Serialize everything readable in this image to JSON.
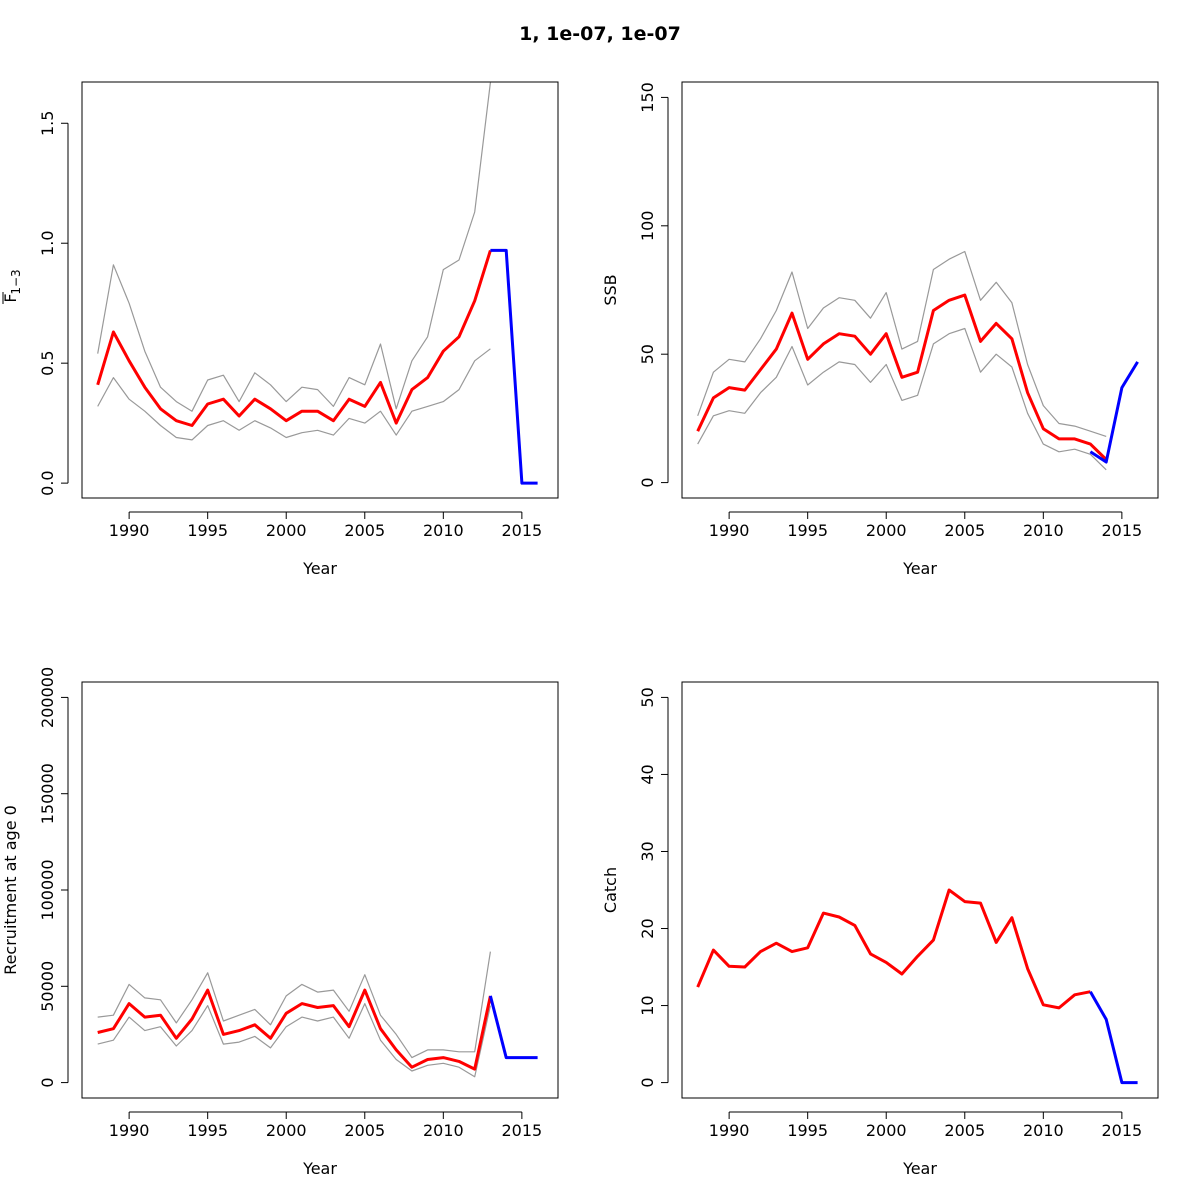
{
  "figure": {
    "title": "1, 1e-07, 1e-07"
  },
  "colors": {
    "estimate": "#ff0000",
    "forecast": "#0000ff",
    "ci": "#999999"
  },
  "chart_data": [
    {
      "type": "line",
      "panel": "fishing-mortality",
      "xlabel": "Year",
      "ylabel_main": "F",
      "ylabel_sub": "1−3",
      "xlim": [
        1987,
        2017.3
      ],
      "ylim": [
        -0.062,
        1.672
      ],
      "xticks": [
        "1990",
        "1995",
        "2000",
        "2005",
        "2010",
        "2015"
      ],
      "yticks": [
        "0.0",
        "0.5",
        "1.0",
        "1.5"
      ],
      "series": [
        {
          "role": "estimate",
          "x": [
            1988,
            1989,
            1990,
            1991,
            1992,
            1993,
            1994,
            1995,
            1996,
            1997,
            1998,
            1999,
            2000,
            2001,
            2002,
            2003,
            2004,
            2005,
            2006,
            2007,
            2008,
            2009,
            2010,
            2011,
            2012,
            2013
          ],
          "y": [
            0.41,
            0.63,
            0.51,
            0.4,
            0.31,
            0.26,
            0.24,
            0.33,
            0.35,
            0.28,
            0.35,
            0.31,
            0.26,
            0.3,
            0.3,
            0.26,
            0.35,
            0.32,
            0.42,
            0.25,
            0.39,
            0.44,
            0.55,
            0.61,
            0.76,
            0.97
          ]
        },
        {
          "role": "forecast",
          "x": [
            2013,
            2014,
            2015,
            2016
          ],
          "y": [
            0.97,
            0.97,
            0.0,
            0.0
          ]
        },
        {
          "role": "ci-upper",
          "x": [
            1988,
            1989,
            1990,
            1991,
            1992,
            1993,
            1994,
            1995,
            1996,
            1997,
            1998,
            1999,
            2000,
            2001,
            2002,
            2003,
            2004,
            2005,
            2006,
            2007,
            2008,
            2009,
            2010,
            2011,
            2012,
            2013
          ],
          "y": [
            0.54,
            0.91,
            0.75,
            0.55,
            0.4,
            0.34,
            0.3,
            0.43,
            0.45,
            0.34,
            0.46,
            0.41,
            0.34,
            0.4,
            0.39,
            0.32,
            0.44,
            0.41,
            0.58,
            0.31,
            0.51,
            0.61,
            0.89,
            0.93,
            1.13,
            1.67
          ]
        },
        {
          "role": "ci-lower",
          "x": [
            1988,
            1989,
            1990,
            1991,
            1992,
            1993,
            1994,
            1995,
            1996,
            1997,
            1998,
            1999,
            2000,
            2001,
            2002,
            2003,
            2004,
            2005,
            2006,
            2007,
            2008,
            2009,
            2010,
            2011,
            2012,
            2013
          ],
          "y": [
            0.32,
            0.44,
            0.35,
            0.3,
            0.24,
            0.19,
            0.18,
            0.24,
            0.26,
            0.22,
            0.26,
            0.23,
            0.19,
            0.21,
            0.22,
            0.2,
            0.27,
            0.25,
            0.3,
            0.2,
            0.3,
            0.32,
            0.34,
            0.39,
            0.51,
            0.56
          ]
        }
      ]
    },
    {
      "type": "line",
      "panel": "ssb",
      "xlabel": "Year",
      "ylabel": "SSB",
      "xlim": [
        1987,
        2017.3
      ],
      "ylim": [
        -6,
        156
      ],
      "xticks": [
        "1990",
        "1995",
        "2000",
        "2005",
        "2010",
        "2015"
      ],
      "yticks": [
        "0",
        "50",
        "100",
        "150"
      ],
      "series": [
        {
          "role": "estimate",
          "x": [
            1988,
            1989,
            1990,
            1991,
            1992,
            1993,
            1994,
            1995,
            1996,
            1997,
            1998,
            1999,
            2000,
            2001,
            2002,
            2003,
            2004,
            2005,
            2006,
            2007,
            2008,
            2009,
            2010,
            2011,
            2012,
            2013,
            2014
          ],
          "y": [
            20,
            33,
            37,
            36,
            44,
            52,
            66,
            48,
            54,
            58,
            57,
            50,
            58,
            41,
            43,
            67,
            71,
            73,
            55,
            62,
            56,
            35,
            21,
            17,
            17,
            15,
            9
          ]
        },
        {
          "role": "forecast",
          "x": [
            2013,
            2014,
            2015,
            2016
          ],
          "y": [
            12,
            8,
            37,
            47
          ]
        },
        {
          "role": "ci-upper",
          "x": [
            1988,
            1989,
            1990,
            1991,
            1992,
            1993,
            1994,
            1995,
            1996,
            1997,
            1998,
            1999,
            2000,
            2001,
            2002,
            2003,
            2004,
            2005,
            2006,
            2007,
            2008,
            2009,
            2010,
            2011,
            2012,
            2013,
            2014
          ],
          "y": [
            26,
            43,
            48,
            47,
            56,
            67,
            82,
            60,
            68,
            72,
            71,
            64,
            74,
            52,
            55,
            83,
            87,
            90,
            71,
            78,
            70,
            46,
            30,
            23,
            22,
            20,
            18
          ]
        },
        {
          "role": "ci-lower",
          "x": [
            1988,
            1989,
            1990,
            1991,
            1992,
            1993,
            1994,
            1995,
            1996,
            1997,
            1998,
            1999,
            2000,
            2001,
            2002,
            2003,
            2004,
            2005,
            2006,
            2007,
            2008,
            2009,
            2010,
            2011,
            2012,
            2013,
            2014
          ],
          "y": [
            15,
            26,
            28,
            27,
            35,
            41,
            53,
            38,
            43,
            47,
            46,
            39,
            46,
            32,
            34,
            54,
            58,
            60,
            43,
            50,
            45,
            27,
            15,
            12,
            13,
            11,
            5
          ]
        }
      ]
    },
    {
      "type": "line",
      "panel": "recruitment",
      "xlabel": "Year",
      "ylabel": "Recruitment at age 0",
      "xlim": [
        1987,
        2017.3
      ],
      "ylim": [
        -8000,
        208000
      ],
      "xticks": [
        "1990",
        "1995",
        "2000",
        "2005",
        "2010",
        "2015"
      ],
      "yticks": [
        "0",
        "50000",
        "100000",
        "150000",
        "200000"
      ],
      "series": [
        {
          "role": "estimate",
          "x": [
            1988,
            1989,
            1990,
            1991,
            1992,
            1993,
            1994,
            1995,
            1996,
            1997,
            1998,
            1999,
            2000,
            2001,
            2002,
            2003,
            2004,
            2005,
            2006,
            2007,
            2008,
            2009,
            2010,
            2011,
            2012,
            2013
          ],
          "y": [
            26000,
            28000,
            41000,
            34000,
            35000,
            23000,
            33000,
            48000,
            25000,
            27000,
            30000,
            23000,
            36000,
            41000,
            39000,
            40000,
            29000,
            48000,
            28000,
            17000,
            8000,
            12000,
            13000,
            11000,
            7000,
            45000
          ]
        },
        {
          "role": "forecast",
          "x": [
            2013,
            2014,
            2015,
            2016
          ],
          "y": [
            45000,
            13000,
            13000,
            13000
          ]
        },
        {
          "role": "ci-upper",
          "x": [
            1988,
            1989,
            1990,
            1991,
            1992,
            1993,
            1994,
            1995,
            1996,
            1997,
            1998,
            1999,
            2000,
            2001,
            2002,
            2003,
            2004,
            2005,
            2006,
            2007,
            2008,
            2009,
            2010,
            2011,
            2012,
            2013
          ],
          "y": [
            34000,
            35000,
            51000,
            44000,
            43000,
            31000,
            43000,
            57000,
            32000,
            35000,
            38000,
            30000,
            45000,
            51000,
            47000,
            48000,
            37000,
            56000,
            35000,
            25000,
            13000,
            17000,
            17000,
            16000,
            16000,
            68000
          ]
        },
        {
          "role": "ci-lower",
          "x": [
            1988,
            1989,
            1990,
            1991,
            1992,
            1993,
            1994,
            1995,
            1996,
            1997,
            1998,
            1999,
            2000,
            2001,
            2002,
            2003,
            2004,
            2005,
            2006,
            2007,
            2008,
            2009,
            2010,
            2011,
            2012,
            2013
          ],
          "y": [
            20000,
            22000,
            34000,
            27000,
            29000,
            19000,
            27000,
            40000,
            20000,
            21000,
            24000,
            18000,
            29000,
            34000,
            32000,
            34000,
            23000,
            41000,
            22000,
            12000,
            6000,
            9000,
            10000,
            8000,
            3000,
            40000
          ]
        }
      ]
    },
    {
      "type": "line",
      "panel": "catch",
      "xlabel": "Year",
      "ylabel": "Catch",
      "xlim": [
        1987,
        2017.3
      ],
      "ylim": [
        -2,
        52
      ],
      "xticks": [
        "1990",
        "1995",
        "2000",
        "2005",
        "2010",
        "2015"
      ],
      "yticks": [
        "0",
        "10",
        "20",
        "30",
        "40",
        "50"
      ],
      "series": [
        {
          "role": "estimate",
          "x": [
            1988,
            1989,
            1990,
            1991,
            1992,
            1993,
            1994,
            1995,
            1996,
            1997,
            1998,
            1999,
            2000,
            2001,
            2002,
            2003,
            2004,
            2005,
            2006,
            2007,
            2008,
            2009,
            2010,
            2011,
            2012,
            2013
          ],
          "y": [
            12.4,
            17.2,
            15.1,
            15.0,
            17.0,
            18.1,
            17.0,
            17.5,
            22.0,
            21.5,
            20.4,
            16.7,
            15.6,
            14.1,
            16.4,
            18.5,
            25.0,
            23.5,
            23.3,
            18.2,
            21.4,
            14.8,
            10.1,
            9.7,
            11.4,
            11.8
          ]
        },
        {
          "role": "forecast",
          "x": [
            2013,
            2014,
            2015,
            2016
          ],
          "y": [
            11.8,
            8.2,
            0.0,
            0.0
          ]
        }
      ]
    }
  ]
}
